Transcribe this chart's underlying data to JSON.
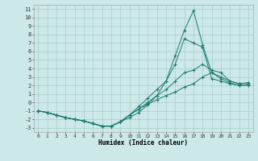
{
  "xlabel": "Humidex (Indice chaleur)",
  "bg_color": "#cce8e8",
  "grid_color": "#aacccc",
  "line_color": "#1a7a6e",
  "xlim": [
    -0.5,
    23.5
  ],
  "ylim": [
    -3.5,
    11.5
  ],
  "xticks": [
    0,
    1,
    2,
    3,
    4,
    5,
    6,
    7,
    8,
    9,
    10,
    11,
    12,
    13,
    14,
    15,
    16,
    17,
    18,
    19,
    20,
    21,
    22,
    23
  ],
  "yticks": [
    -3,
    -2,
    -1,
    0,
    1,
    2,
    3,
    4,
    5,
    6,
    7,
    8,
    9,
    10,
    11
  ],
  "curves": [
    {
      "x": [
        0,
        1,
        2,
        3,
        4,
        5,
        6,
        7,
        8,
        9,
        10,
        11,
        12,
        13,
        14,
        15,
        16,
        17,
        18,
        19,
        20,
        21,
        22,
        23
      ],
      "y": [
        -1,
        -1.2,
        -1.5,
        -1.8,
        -2.0,
        -2.2,
        -2.5,
        -2.8,
        -2.8,
        -2.3,
        -1.8,
        -1.2,
        -0.3,
        0.8,
        2.5,
        5.5,
        8.5,
        10.8,
        6.8,
        3.5,
        3.0,
        2.5,
        2.2,
        2.3
      ]
    },
    {
      "x": [
        0,
        1,
        2,
        3,
        4,
        5,
        6,
        7,
        8,
        9,
        10,
        11,
        12,
        13,
        14,
        15,
        16,
        17,
        18,
        19,
        20,
        21,
        22,
        23
      ],
      "y": [
        -1,
        -1.2,
        -1.5,
        -1.8,
        -2.0,
        -2.2,
        -2.5,
        -2.8,
        -2.8,
        -2.3,
        -1.5,
        -0.5,
        0.5,
        1.5,
        2.5,
        4.5,
        7.5,
        7.0,
        6.5,
        2.8,
        2.5,
        2.2,
        2.0,
        2.0
      ]
    },
    {
      "x": [
        0,
        1,
        2,
        3,
        4,
        5,
        6,
        7,
        8,
        9,
        10,
        11,
        12,
        13,
        14,
        15,
        16,
        17,
        18,
        19,
        20,
        21,
        22,
        23
      ],
      "y": [
        -1,
        -1.2,
        -1.5,
        -1.8,
        -2.0,
        -2.2,
        -2.5,
        -2.8,
        -2.8,
        -2.3,
        -1.5,
        -0.8,
        0.0,
        0.8,
        1.5,
        2.5,
        3.5,
        3.8,
        4.5,
        3.8,
        3.5,
        2.5,
        2.2,
        2.3
      ]
    },
    {
      "x": [
        0,
        1,
        2,
        3,
        4,
        5,
        6,
        7,
        8,
        9,
        10,
        11,
        12,
        13,
        14,
        15,
        16,
        17,
        18,
        19,
        20,
        21,
        22,
        23
      ],
      "y": [
        -1,
        -1.2,
        -1.5,
        -1.8,
        -2.0,
        -2.2,
        -2.5,
        -2.8,
        -2.8,
        -2.3,
        -1.5,
        -0.8,
        -0.2,
        0.3,
        0.8,
        1.2,
        1.8,
        2.2,
        3.0,
        3.5,
        2.8,
        2.3,
        2.0,
        2.1
      ]
    }
  ]
}
